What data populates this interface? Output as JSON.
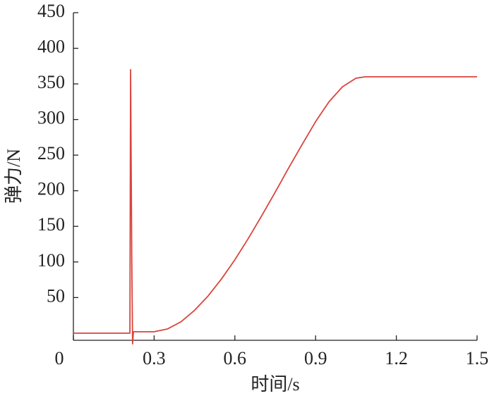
{
  "chart_data": {
    "type": "line",
    "x_label": "时间/s",
    "y_label": "弹力/N",
    "x": [
      0,
      0.21,
      0.2125,
      0.217,
      0.22,
      0.223,
      0.23,
      0.3,
      0.35,
      0.4,
      0.45,
      0.5,
      0.55,
      0.6,
      0.65,
      0.7,
      0.75,
      0.8,
      0.85,
      0.9,
      0.95,
      1.0,
      1.05,
      1.085,
      1.5
    ],
    "series": [
      {
        "name": "弹力",
        "color": "#d9453c",
        "values": [
          0,
          0,
          370,
          100,
          -15,
          2,
          2,
          2,
          6,
          16,
          32,
          52,
          76,
          103,
          133,
          165,
          198,
          232,
          265,
          297,
          325,
          346,
          358,
          360,
          360
        ]
      }
    ],
    "xlim": [
      0,
      1.5
    ],
    "ylim": [
      -10,
      450
    ],
    "xticks": [
      0,
      0.3,
      0.6,
      0.9,
      1.2,
      1.5
    ],
    "yticks": [
      50,
      100,
      150,
      200,
      250,
      300,
      350,
      400,
      450
    ]
  }
}
